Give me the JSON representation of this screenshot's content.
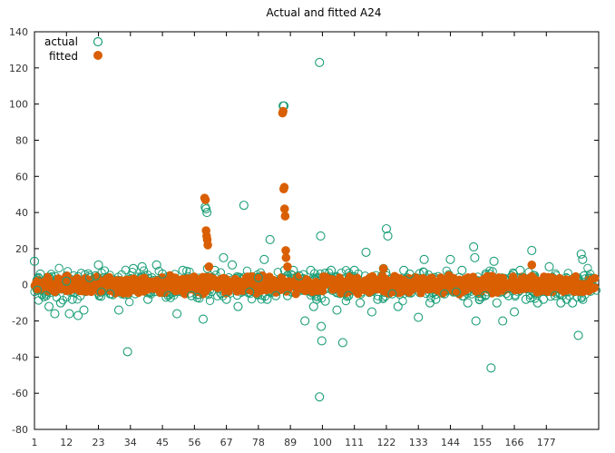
{
  "chart_data": {
    "type": "scatter",
    "title": "Actual and fitted A24",
    "xlabel": "",
    "ylabel": "",
    "xlim": [
      1,
      195
    ],
    "ylim": [
      -80,
      140
    ],
    "x_ticks": [
      1,
      12,
      23,
      34,
      45,
      56,
      67,
      78,
      89,
      100,
      111,
      122,
      133,
      144,
      155,
      166,
      177
    ],
    "y_ticks": [
      -80,
      -60,
      -40,
      -20,
      0,
      20,
      40,
      60,
      80,
      100,
      120,
      140
    ],
    "legend_position": "top-left",
    "grid": false,
    "zero_line": true,
    "colors": {
      "actual": "#1b9e77",
      "fitted": "#d95f02",
      "axis": "#000000",
      "zero": "#d95f02"
    },
    "series": [
      {
        "name": "actual",
        "marker": "open-circle",
        "points": [
          [
            1,
            13
          ],
          [
            2,
            -3
          ],
          [
            3,
            6
          ],
          [
            5,
            -6
          ],
          [
            6,
            -12
          ],
          [
            8,
            -16
          ],
          [
            10,
            -10
          ],
          [
            12,
            2
          ],
          [
            13,
            -16
          ],
          [
            14,
            -8
          ],
          [
            16,
            -17
          ],
          [
            18,
            -14
          ],
          [
            20,
            4
          ],
          [
            22,
            5
          ],
          [
            23,
            11
          ],
          [
            24,
            -4
          ],
          [
            27,
            -5
          ],
          [
            30,
            -14
          ],
          [
            33,
            -37
          ],
          [
            35,
            9
          ],
          [
            38,
            10
          ],
          [
            40,
            -8
          ],
          [
            43,
            11
          ],
          [
            45,
            6
          ],
          [
            47,
            -6
          ],
          [
            50,
            -16
          ],
          [
            52,
            8
          ],
          [
            55,
            -6
          ],
          [
            57,
            -7
          ],
          [
            59,
            -19
          ],
          [
            59.7,
            43
          ],
          [
            60,
            42
          ],
          [
            60.3,
            40
          ],
          [
            60.5,
            9
          ],
          [
            63,
            8
          ],
          [
            66,
            15
          ],
          [
            67,
            -8
          ],
          [
            69,
            11
          ],
          [
            71,
            -12
          ],
          [
            73,
            44
          ],
          [
            75,
            -4
          ],
          [
            78,
            4
          ],
          [
            80,
            14
          ],
          [
            81,
            -8
          ],
          [
            82,
            25
          ],
          [
            84,
            -6
          ],
          [
            86.5,
            99
          ],
          [
            86.8,
            99
          ],
          [
            87,
            8
          ],
          [
            88,
            -6
          ],
          [
            90,
            8
          ],
          [
            92,
            5
          ],
          [
            94,
            -20
          ],
          [
            96,
            8
          ],
          [
            97,
            -12
          ],
          [
            98,
            -8
          ],
          [
            99,
            123
          ],
          [
            99.4,
            27
          ],
          [
            99.6,
            -23
          ],
          [
            99.8,
            -31
          ],
          [
            99,
            -62
          ],
          [
            101,
            -9
          ],
          [
            103,
            8
          ],
          [
            105,
            -14
          ],
          [
            107,
            -32
          ],
          [
            109,
            -6
          ],
          [
            111,
            8
          ],
          [
            113,
            -10
          ],
          [
            115,
            18
          ],
          [
            117,
            -15
          ],
          [
            119,
            -8
          ],
          [
            121,
            9
          ],
          [
            122,
            31
          ],
          [
            122.5,
            27
          ],
          [
            124,
            -5
          ],
          [
            126,
            -12
          ],
          [
            128,
            8
          ],
          [
            130,
            6
          ],
          [
            133,
            -18
          ],
          [
            135,
            14
          ],
          [
            137,
            -10
          ],
          [
            139,
            -8
          ],
          [
            142,
            -5
          ],
          [
            144,
            14
          ],
          [
            146,
            -4
          ],
          [
            148,
            8
          ],
          [
            150,
            -10
          ],
          [
            152,
            21
          ],
          [
            152.4,
            15
          ],
          [
            152.8,
            -20
          ],
          [
            154,
            -8
          ],
          [
            156,
            -6
          ],
          [
            158,
            -46
          ],
          [
            159,
            13
          ],
          [
            160,
            -10
          ],
          [
            162,
            -20
          ],
          [
            164,
            -6
          ],
          [
            166,
            -15
          ],
          [
            168,
            8
          ],
          [
            170,
            -8
          ],
          [
            172,
            19
          ],
          [
            174,
            -10
          ],
          [
            176,
            -8
          ],
          [
            178,
            10
          ],
          [
            180,
            -6
          ],
          [
            182,
            -10
          ],
          [
            184,
            -8
          ],
          [
            186,
            -10
          ],
          [
            188,
            -28
          ],
          [
            189,
            17
          ],
          [
            189.5,
            14
          ],
          [
            190,
            5
          ]
        ]
      },
      {
        "name": "fitted",
        "marker": "filled-circle",
        "points": [
          [
            59.5,
            48
          ],
          [
            59.8,
            47
          ],
          [
            60,
            30
          ],
          [
            60.2,
            27
          ],
          [
            60.4,
            25
          ],
          [
            60.6,
            22
          ],
          [
            61,
            10
          ],
          [
            86.3,
            95
          ],
          [
            86.5,
            96
          ],
          [
            86.7,
            53
          ],
          [
            86.9,
            54
          ],
          [
            87,
            42
          ],
          [
            87.2,
            38
          ],
          [
            87.4,
            19
          ],
          [
            87.5,
            15
          ],
          [
            88,
            10
          ],
          [
            121,
            9
          ],
          [
            172,
            11
          ]
        ]
      }
    ]
  }
}
